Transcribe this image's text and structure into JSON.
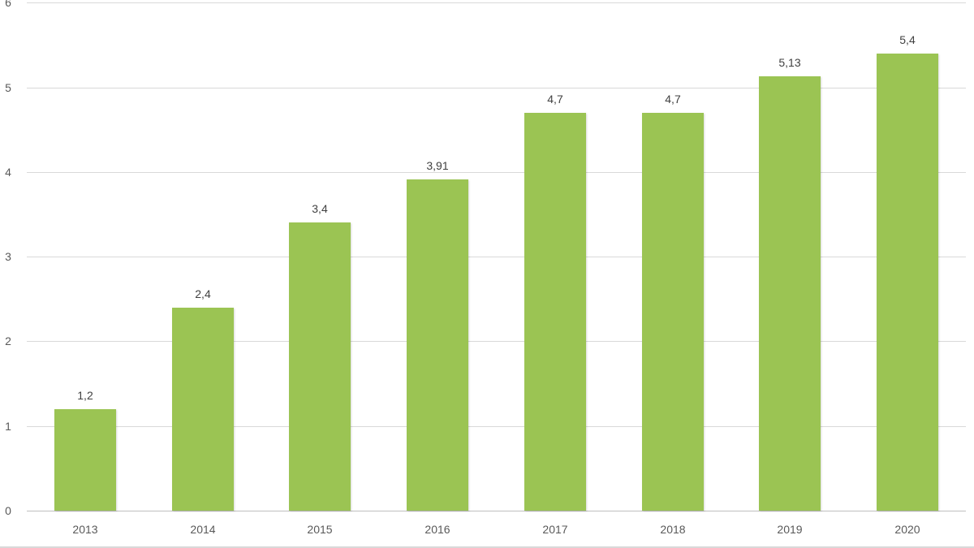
{
  "chart_data": {
    "type": "bar",
    "title": "",
    "xlabel": "",
    "ylabel": "",
    "categories": [
      "2013",
      "2014",
      "2015",
      "2016",
      "2017",
      "2018",
      "2019",
      "2020"
    ],
    "values": [
      1.2,
      2.4,
      3.4,
      3.91,
      4.7,
      4.7,
      5.13,
      5.4
    ],
    "value_labels": [
      "1,2",
      "2,4",
      "3,4",
      "3,91",
      "4,7",
      "4,7",
      "5,13",
      "5,4"
    ],
    "ylim": [
      0,
      6
    ],
    "yticks": [
      0,
      1,
      2,
      3,
      4,
      5,
      6
    ],
    "grid": true,
    "legend": null,
    "colors": {
      "bar": "#9bc453",
      "grid": "#d9d9d9",
      "text": "#404040"
    }
  }
}
